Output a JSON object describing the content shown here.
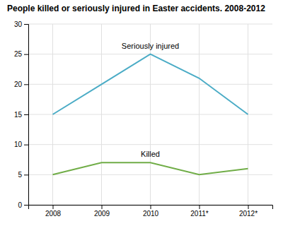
{
  "chart_data": {
    "type": "line",
    "title": "People killed or seriously injured in Easter accidents. 2008-2012",
    "categories": [
      "2008",
      "2009",
      "2010",
      "2011*",
      "2012*"
    ],
    "series": [
      {
        "name": "Seriously injured",
        "color": "#4bacc6",
        "values": [
          15,
          20,
          25,
          21,
          15
        ]
      },
      {
        "name": "Killed",
        "color": "#70ad47",
        "values": [
          5,
          7,
          7,
          5,
          6
        ]
      }
    ],
    "ylim": [
      0,
      30
    ],
    "yticks": [
      0,
      5,
      10,
      15,
      20,
      25,
      30
    ],
    "grid": true
  }
}
